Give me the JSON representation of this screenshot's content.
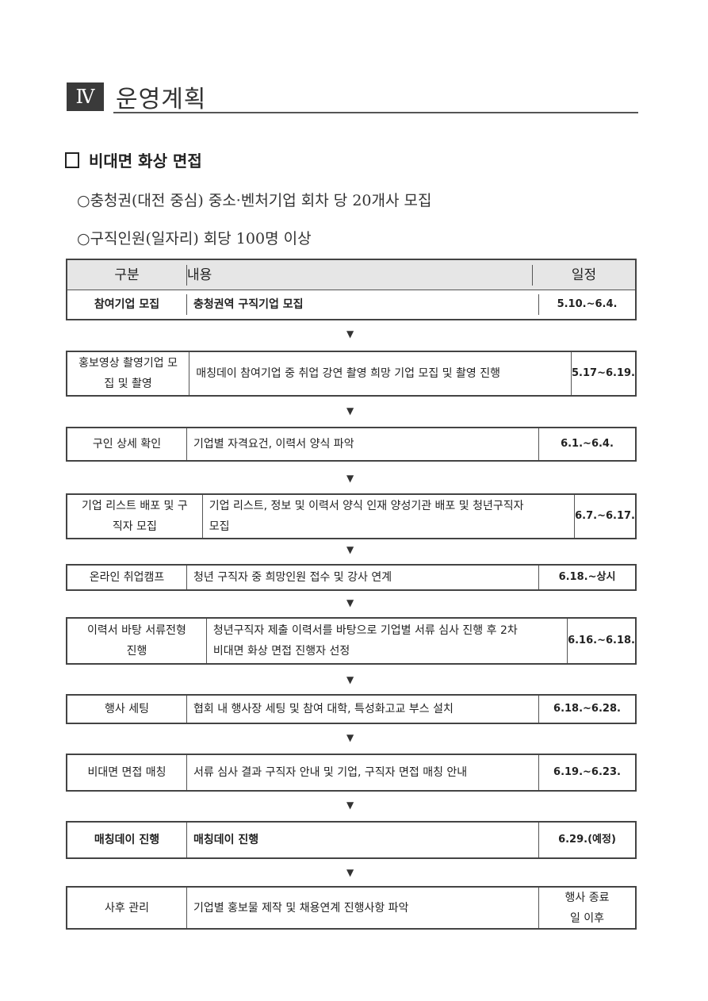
{
  "section": {
    "number": "Ⅳ",
    "title": "운영계획"
  },
  "subheading": "비대면 화상 면접",
  "bullets": [
    "○충청권(대전 중심) 중소·벤처기업 회차 당 20개사 모집",
    "○구직인원(일자리) 회당 100명 이상"
  ],
  "table": {
    "headers": [
      "구분",
      "내용",
      "일정"
    ],
    "arrow_icon": "▼",
    "rows": [
      {
        "category": "참여기업 모집",
        "content": "충청권역 구직기업 모집",
        "schedule": "5.10.~6.4."
      },
      {
        "category": "홍보영상 촬영기업 모집 및 촬영",
        "content": "매칭데이 참여기업 중 취업 강연 촬영 희망 기업 모집 및 촬영 진행",
        "schedule": "5.17~6.19."
      },
      {
        "category": "구인 상세 확인",
        "content": "기업별 자격요건, 이력서 양식 파악",
        "schedule": "6.1.~6.4."
      },
      {
        "category": "기업 리스트 배포 및 구직자 모집",
        "content": "기업 리스트, 정보 및 이력서 양식 인재 양성기관 배포 및 청년구직자 모집",
        "schedule": "6.7.~6.17."
      },
      {
        "category": "온라인 취업캠프",
        "content": "청년 구직자 중 희망인원 접수 및 강사 연계",
        "schedule": "6.18.~상시"
      },
      {
        "category": "이력서 바탕 서류전형 진행",
        "content": "청년구직자 제출 이력서를 바탕으로 기업별 서류 심사 진행 후 2차 비대면 화상 면접 진행자 선정",
        "schedule": "6.16.~6.18."
      },
      {
        "category": "행사 세팅",
        "content": "협회 내 행사장 세팅 및 참여 대학, 특성화고교 부스 설치",
        "schedule": "6.18.~6.28."
      },
      {
        "category": "비대면 면접 매칭",
        "content": "서류 심사 결과 구직자 안내 및 기업, 구직자 면접 매칭 안내",
        "schedule": "6.19.~6.23."
      },
      {
        "category": "매칭데이 진행",
        "content": "매칭데이 진행",
        "schedule": "6.29.(예정)"
      },
      {
        "category": "사후 관리",
        "content": "기업별 홍보물 제작 및 채용연계 진행사항 파악",
        "schedule": "행사 종료일 이후"
      }
    ]
  }
}
